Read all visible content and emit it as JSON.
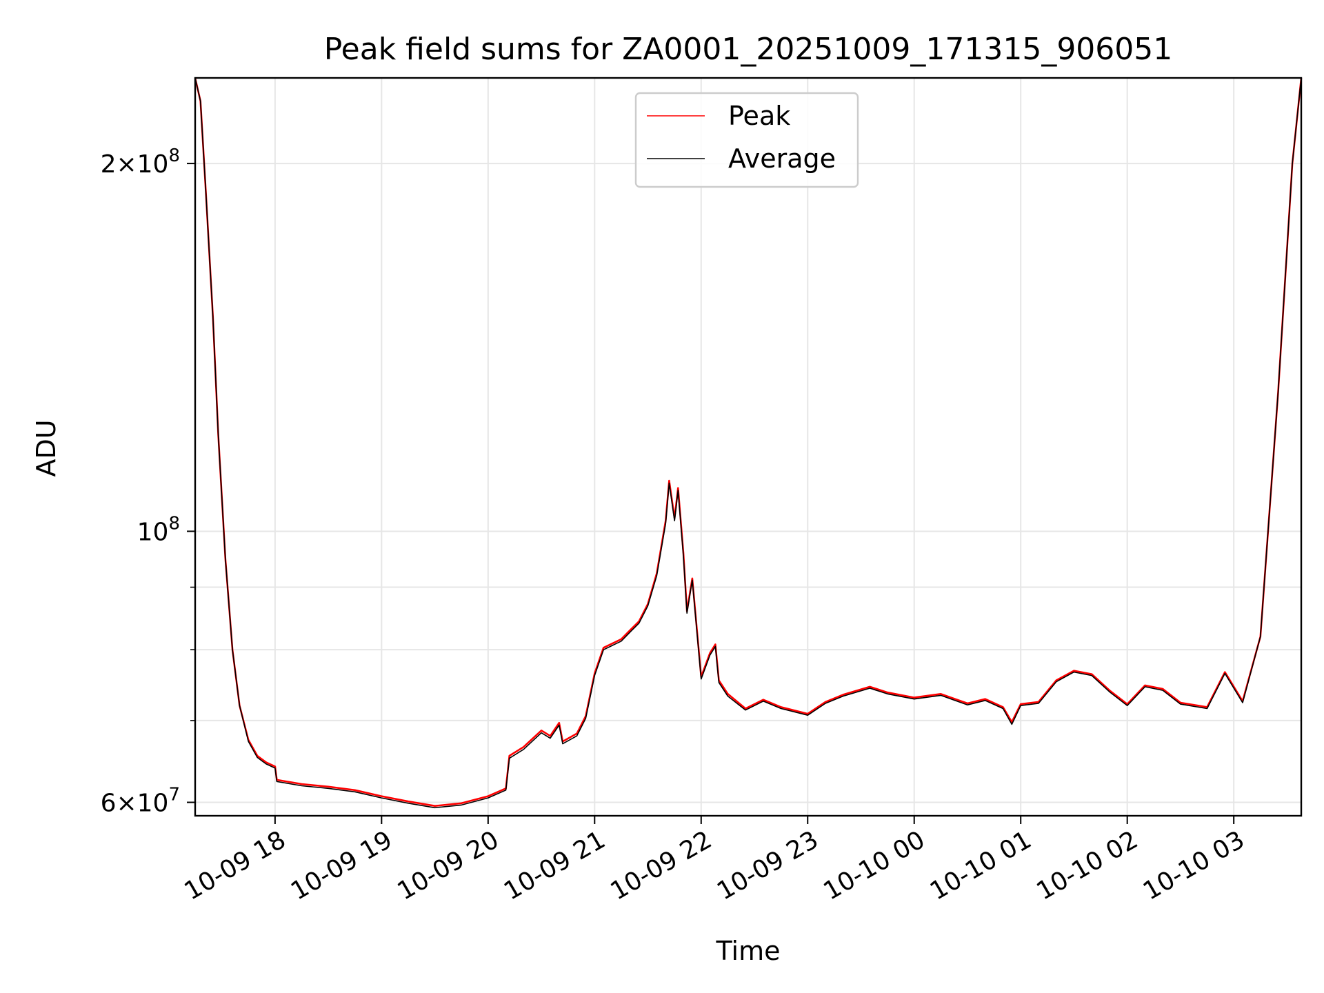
{
  "chart_data": {
    "type": "line",
    "title": "Peak field sums for ZA0001_20251009_171315_906051",
    "xlabel": "Time",
    "ylabel": "ADU",
    "yscale": "log",
    "xlim": [
      "2025-10-09 17:15",
      "2025-10-10 03:38"
    ],
    "ylim": [
      58500000,
      235000000
    ],
    "x_ticks": [
      {
        "t": "2025-10-09 18:00",
        "label": "10-09 18"
      },
      {
        "t": "2025-10-09 19:00",
        "label": "10-09 19"
      },
      {
        "t": "2025-10-09 20:00",
        "label": "10-09 20"
      },
      {
        "t": "2025-10-09 21:00",
        "label": "10-09 21"
      },
      {
        "t": "2025-10-09 22:00",
        "label": "10-09 22"
      },
      {
        "t": "2025-10-09 23:00",
        "label": "10-09 23"
      },
      {
        "t": "2025-10-10 00:00",
        "label": "10-10 00"
      },
      {
        "t": "2025-10-10 01:00",
        "label": "10-10 01"
      },
      {
        "t": "2025-10-10 02:00",
        "label": "10-10 02"
      },
      {
        "t": "2025-10-10 03:00",
        "label": "10-10 03"
      }
    ],
    "y_major_ticks": [
      {
        "v": 60000000,
        "base": "6×10",
        "exp": "7"
      },
      {
        "v": 100000000,
        "base": "10",
        "exp": "8"
      },
      {
        "v": 200000000,
        "base": "2×10",
        "exp": "8"
      }
    ],
    "y_minor_ticks": [
      70000000,
      80000000,
      90000000
    ],
    "grid": true,
    "legend": {
      "position": "top-center"
    },
    "series": [
      {
        "name": "Peak",
        "color": "#ff0000",
        "points": [
          [
            "2025-10-09 17:15",
            235000000
          ],
          [
            "2025-10-09 17:18",
            225000000
          ],
          [
            "2025-10-09 17:21",
            190000000
          ],
          [
            "2025-10-09 17:25",
            150000000
          ],
          [
            "2025-10-09 17:28",
            120000000
          ],
          [
            "2025-10-09 17:32",
            95000000
          ],
          [
            "2025-10-09 17:36",
            80000000
          ],
          [
            "2025-10-09 17:40",
            72000000
          ],
          [
            "2025-10-09 17:45",
            67500000
          ],
          [
            "2025-10-09 17:50",
            65500000
          ],
          [
            "2025-10-09 17:55",
            64700000
          ],
          [
            "2025-10-09 18:00",
            64200000
          ],
          [
            "2025-10-09 18:01",
            62600000
          ],
          [
            "2025-10-09 18:15",
            62100000
          ],
          [
            "2025-10-09 18:30",
            61800000
          ],
          [
            "2025-10-09 18:45",
            61400000
          ],
          [
            "2025-10-09 19:00",
            60700000
          ],
          [
            "2025-10-09 19:15",
            60100000
          ],
          [
            "2025-10-09 19:30",
            59600000
          ],
          [
            "2025-10-09 19:45",
            59900000
          ],
          [
            "2025-10-09 20:00",
            60700000
          ],
          [
            "2025-10-09 20:10",
            61600000
          ],
          [
            "2025-10-09 20:12",
            65500000
          ],
          [
            "2025-10-09 20:20",
            66600000
          ],
          [
            "2025-10-09 20:30",
            68700000
          ],
          [
            "2025-10-09 20:35",
            68000000
          ],
          [
            "2025-10-09 20:40",
            69700000
          ],
          [
            "2025-10-09 20:42",
            67300000
          ],
          [
            "2025-10-09 20:50",
            68300000
          ],
          [
            "2025-10-09 20:55",
            70600000
          ],
          [
            "2025-10-09 21:00",
            76500000
          ],
          [
            "2025-10-09 21:05",
            80300000
          ],
          [
            "2025-10-09 21:15",
            81600000
          ],
          [
            "2025-10-09 21:20",
            83000000
          ],
          [
            "2025-10-09 21:25",
            84400000
          ],
          [
            "2025-10-09 21:30",
            87200000
          ],
          [
            "2025-10-09 21:35",
            92400000
          ],
          [
            "2025-10-09 21:40",
            102000000
          ],
          [
            "2025-10-09 21:42",
            110000000
          ],
          [
            "2025-10-09 21:45",
            102500000
          ],
          [
            "2025-10-09 21:47",
            108500000
          ],
          [
            "2025-10-09 21:50",
            96000000
          ],
          [
            "2025-10-09 21:52",
            86000000
          ],
          [
            "2025-10-09 21:55",
            91500000
          ],
          [
            "2025-10-09 22:00",
            76000000
          ],
          [
            "2025-10-09 22:05",
            79500000
          ],
          [
            "2025-10-09 22:08",
            80800000
          ],
          [
            "2025-10-09 22:10",
            75500000
          ],
          [
            "2025-10-09 22:15",
            73600000
          ],
          [
            "2025-10-09 22:25",
            71600000
          ],
          [
            "2025-10-09 22:35",
            72800000
          ],
          [
            "2025-10-09 22:45",
            71800000
          ],
          [
            "2025-10-09 23:00",
            70900000
          ],
          [
            "2025-10-09 23:10",
            72500000
          ],
          [
            "2025-10-09 23:20",
            73500000
          ],
          [
            "2025-10-09 23:35",
            74600000
          ],
          [
            "2025-10-09 23:45",
            73800000
          ],
          [
            "2025-10-10 00:00",
            73100000
          ],
          [
            "2025-10-10 00:15",
            73600000
          ],
          [
            "2025-10-10 00:30",
            72300000
          ],
          [
            "2025-10-10 00:40",
            72900000
          ],
          [
            "2025-10-10 00:50",
            71800000
          ],
          [
            "2025-10-10 00:55",
            69800000
          ],
          [
            "2025-10-10 01:00",
            72200000
          ],
          [
            "2025-10-10 01:10",
            72500000
          ],
          [
            "2025-10-10 01:20",
            75500000
          ],
          [
            "2025-10-10 01:30",
            76900000
          ],
          [
            "2025-10-10 01:40",
            76400000
          ],
          [
            "2025-10-10 01:50",
            74100000
          ],
          [
            "2025-10-10 02:00",
            72200000
          ],
          [
            "2025-10-10 02:10",
            74800000
          ],
          [
            "2025-10-10 02:20",
            74300000
          ],
          [
            "2025-10-10 02:30",
            72400000
          ],
          [
            "2025-10-10 02:45",
            71800000
          ],
          [
            "2025-10-10 02:55",
            76700000
          ],
          [
            "2025-10-10 03:05",
            72600000
          ],
          [
            "2025-10-10 03:15",
            82000000
          ],
          [
            "2025-10-10 03:25",
            130000000
          ],
          [
            "2025-10-10 03:33",
            200000000
          ],
          [
            "2025-10-10 03:38",
            235000000
          ]
        ]
      },
      {
        "name": "Average",
        "color": "#000000",
        "points": [
          [
            "2025-10-09 17:15",
            235000000
          ],
          [
            "2025-10-09 17:18",
            225000000
          ],
          [
            "2025-10-09 17:21",
            190000000
          ],
          [
            "2025-10-09 17:25",
            150000000
          ],
          [
            "2025-10-09 17:28",
            120000000
          ],
          [
            "2025-10-09 17:32",
            95000000
          ],
          [
            "2025-10-09 17:36",
            80000000
          ],
          [
            "2025-10-09 17:40",
            72000000
          ],
          [
            "2025-10-09 17:45",
            67300000
          ],
          [
            "2025-10-09 17:50",
            65300000
          ],
          [
            "2025-10-09 17:55",
            64500000
          ],
          [
            "2025-10-09 18:00",
            64000000
          ],
          [
            "2025-10-09 18:01",
            62400000
          ],
          [
            "2025-10-09 18:15",
            61900000
          ],
          [
            "2025-10-09 18:30",
            61600000
          ],
          [
            "2025-10-09 18:45",
            61200000
          ],
          [
            "2025-10-09 19:00",
            60500000
          ],
          [
            "2025-10-09 19:15",
            59900000
          ],
          [
            "2025-10-09 19:30",
            59400000
          ],
          [
            "2025-10-09 19:45",
            59700000
          ],
          [
            "2025-10-09 20:00",
            60500000
          ],
          [
            "2025-10-09 20:10",
            61400000
          ],
          [
            "2025-10-09 20:12",
            65200000
          ],
          [
            "2025-10-09 20:20",
            66300000
          ],
          [
            "2025-10-09 20:30",
            68400000
          ],
          [
            "2025-10-09 20:35",
            67700000
          ],
          [
            "2025-10-09 20:40",
            69400000
          ],
          [
            "2025-10-09 20:42",
            67000000
          ],
          [
            "2025-10-09 20:50",
            68000000
          ],
          [
            "2025-10-09 20:55",
            70300000
          ],
          [
            "2025-10-09 21:00",
            76200000
          ],
          [
            "2025-10-09 21:05",
            80000000
          ],
          [
            "2025-10-09 21:15",
            81300000
          ],
          [
            "2025-10-09 21:20",
            82700000
          ],
          [
            "2025-10-09 21:25",
            84100000
          ],
          [
            "2025-10-09 21:30",
            86900000
          ],
          [
            "2025-10-09 21:35",
            92000000
          ],
          [
            "2025-10-09 21:40",
            101500000
          ],
          [
            "2025-10-09 21:42",
            109500000
          ],
          [
            "2025-10-09 21:45",
            102000000
          ],
          [
            "2025-10-09 21:47",
            108000000
          ],
          [
            "2025-10-09 21:50",
            95500000
          ],
          [
            "2025-10-09 21:52",
            85700000
          ],
          [
            "2025-10-09 21:55",
            91200000
          ],
          [
            "2025-10-09 22:00",
            75700000
          ],
          [
            "2025-10-09 22:05",
            79200000
          ],
          [
            "2025-10-09 22:08",
            80500000
          ],
          [
            "2025-10-09 22:10",
            75200000
          ],
          [
            "2025-10-09 22:15",
            73300000
          ],
          [
            "2025-10-09 22:25",
            71400000
          ],
          [
            "2025-10-09 22:35",
            72600000
          ],
          [
            "2025-10-09 22:45",
            71600000
          ],
          [
            "2025-10-09 23:00",
            70700000
          ],
          [
            "2025-10-09 23:10",
            72300000
          ],
          [
            "2025-10-09 23:20",
            73300000
          ],
          [
            "2025-10-09 23:35",
            74400000
          ],
          [
            "2025-10-09 23:45",
            73600000
          ],
          [
            "2025-10-10 00:00",
            72900000
          ],
          [
            "2025-10-10 00:15",
            73400000
          ],
          [
            "2025-10-10 00:30",
            72100000
          ],
          [
            "2025-10-10 00:40",
            72700000
          ],
          [
            "2025-10-10 00:50",
            71600000
          ],
          [
            "2025-10-10 00:55",
            69500000
          ],
          [
            "2025-10-10 01:00",
            72000000
          ],
          [
            "2025-10-10 01:10",
            72300000
          ],
          [
            "2025-10-10 01:20",
            75300000
          ],
          [
            "2025-10-10 01:30",
            76700000
          ],
          [
            "2025-10-10 01:40",
            76200000
          ],
          [
            "2025-10-10 01:50",
            73900000
          ],
          [
            "2025-10-10 02:00",
            72000000
          ],
          [
            "2025-10-10 02:10",
            74600000
          ],
          [
            "2025-10-10 02:20",
            74100000
          ],
          [
            "2025-10-10 02:30",
            72200000
          ],
          [
            "2025-10-10 02:45",
            71600000
          ],
          [
            "2025-10-10 02:55",
            76500000
          ],
          [
            "2025-10-10 03:05",
            72400000
          ],
          [
            "2025-10-10 03:15",
            82000000
          ],
          [
            "2025-10-10 03:25",
            130000000
          ],
          [
            "2025-10-10 03:33",
            200000000
          ],
          [
            "2025-10-10 03:38",
            235000000
          ]
        ]
      }
    ]
  }
}
